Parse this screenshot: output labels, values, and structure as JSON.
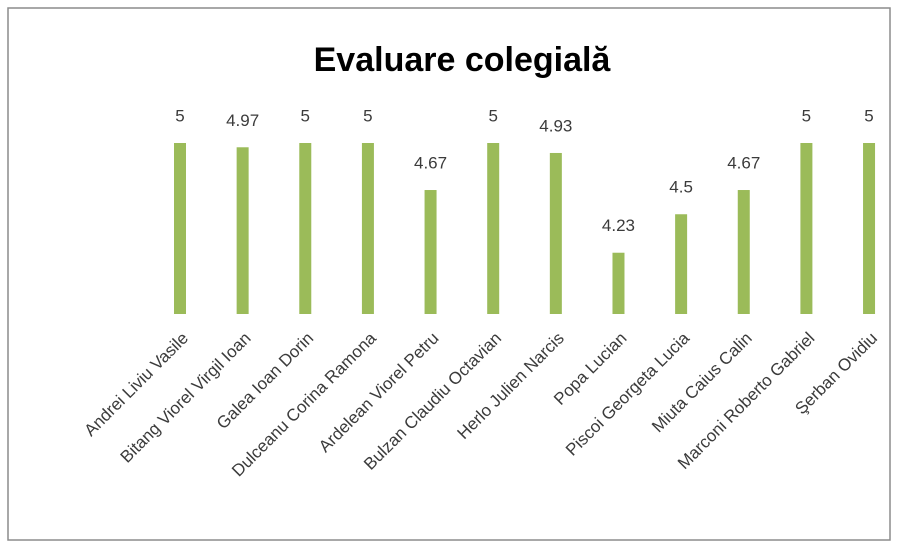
{
  "chart_data": {
    "type": "bar",
    "title": "Evaluare colegială",
    "categories": [
      "Andrei Liviu Vasile",
      "Bitang Viorel Virgil Ioan",
      "Galea Ioan Dorin",
      "Dulceanu Corina Ramona",
      "Ardelean Viorel Petru",
      "Bulzan Claudiu Octavian",
      "Herlo Julien Narcis",
      "Popa Lucian",
      "Piscoi Georgeta Lucia",
      "Miuta Caius Calin",
      "Marconi Roberto Gabriel",
      "Şerban Ovidiu"
    ],
    "values": [
      5,
      4.97,
      5,
      5,
      4.67,
      5,
      4.93,
      4.23,
      4.5,
      4.67,
      5,
      5
    ],
    "color": "#9bbb59",
    "ylim": [
      3.8,
      5.2
    ]
  }
}
